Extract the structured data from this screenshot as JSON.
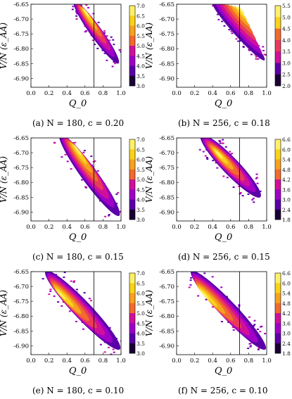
{
  "axis_labels": {
    "ylabel": "V/N  (ε_AA)",
    "xlabel": "Q_0"
  },
  "palette": [
    "#1a0033",
    "#5b00a8",
    "#a100c8",
    "#d1109a",
    "#e83a5a",
    "#f26a2e",
    "#f7a21f",
    "#f9d21a",
    "#fff06a"
  ],
  "marker_line_x": 0.7,
  "chart_data": [
    {
      "type": "heatmap",
      "caption": "(a) N = 180, c = 0.20",
      "xlim": [
        0.0,
        1.0
      ],
      "ylim": [
        -6.93,
        -6.65
      ],
      "xticks": [
        "0.0",
        "0.2",
        "0.4",
        "0.6",
        "0.8",
        "1.0"
      ],
      "yticks": [
        "-6.65",
        "-6.70",
        "-6.75",
        "-6.80",
        "-6.85",
        "-6.90"
      ],
      "colorbar": [
        "7.0",
        "6.5",
        "6.0",
        "5.5",
        "5.0",
        "4.5",
        "4.0",
        "3.5",
        "3.0"
      ],
      "colorbar_range": [
        3.0,
        7.0
      ],
      "ridge": [
        [
          0.5,
          -6.65
        ],
        [
          0.95,
          -6.84
        ]
      ],
      "peak": [
        0.6,
        -6.67
      ],
      "width": 0.12
    },
    {
      "type": "heatmap",
      "caption": "(b) N = 256, c = 0.18",
      "xlim": [
        0.0,
        1.0
      ],
      "ylim": [
        -6.93,
        -6.65
      ],
      "xticks": [
        "0.0",
        "0.2",
        "0.4",
        "0.6",
        "0.8",
        "1.0"
      ],
      "yticks": [
        "-6.65",
        "-6.70",
        "-6.75",
        "-6.80",
        "-6.85",
        "-6.90"
      ],
      "colorbar": [
        "5.5",
        "5.0",
        "4.5",
        "4.0",
        "3.5",
        "3.0",
        "2.5",
        "2.0"
      ],
      "colorbar_range": [
        2.0,
        5.5
      ],
      "ridge": [
        [
          0.42,
          -6.65
        ],
        [
          0.95,
          -6.83
        ]
      ],
      "peak": [
        0.72,
        -6.66
      ],
      "width": 0.1
    },
    {
      "type": "heatmap",
      "caption": "(c) N = 180, c = 0.15",
      "xlim": [
        0.0,
        1.0
      ],
      "ylim": [
        -6.93,
        -6.65
      ],
      "xticks": [
        "0.0",
        "0.2",
        "0.4",
        "0.6",
        "0.8",
        "1.0"
      ],
      "yticks": [
        "-6.65",
        "-6.70",
        "-6.75",
        "-6.80",
        "-6.85",
        "-6.90"
      ],
      "colorbar": [
        "7.0",
        "6.5",
        "6.0",
        "5.5",
        "5.0",
        "4.5",
        "4.0",
        "3.5",
        "3.0"
      ],
      "colorbar_range": [
        3.0,
        7.0
      ],
      "ridge": [
        [
          0.35,
          -6.65
        ],
        [
          0.95,
          -6.9
        ]
      ],
      "peak": [
        0.5,
        -6.68
      ],
      "width": 0.16
    },
    {
      "type": "heatmap",
      "caption": "(d) N = 256, c = 0.15",
      "xlim": [
        0.0,
        1.0
      ],
      "ylim": [
        -6.93,
        -6.65
      ],
      "xticks": [
        "0.0",
        "0.2",
        "0.4",
        "0.6",
        "0.8",
        "1.0"
      ],
      "yticks": [
        "-6.65",
        "-6.70",
        "-6.75",
        "-6.80",
        "-6.85",
        "-6.90"
      ],
      "colorbar": [
        "6.6",
        "6.0",
        "5.4",
        "4.8",
        "4.2",
        "3.6",
        "3.0",
        "2.4",
        "1.8"
      ],
      "colorbar_range": [
        1.8,
        6.6
      ],
      "ridge": [
        [
          0.3,
          -6.65
        ],
        [
          0.9,
          -6.84
        ]
      ],
      "peak": [
        0.45,
        -6.7
      ],
      "width": 0.17
    },
    {
      "type": "heatmap",
      "caption": "(e) N = 180, c = 0.10",
      "xlim": [
        0.0,
        1.0
      ],
      "ylim": [
        -6.93,
        -6.65
      ],
      "xticks": [
        "0.0",
        "0.2",
        "0.4",
        "0.6",
        "0.8",
        "1.0"
      ],
      "yticks": [
        "-6.65",
        "-6.70",
        "-6.75",
        "-6.80",
        "-6.85",
        "-6.90"
      ],
      "colorbar": [
        "7.0",
        "6.5",
        "6.0",
        "5.5",
        "5.0",
        "4.5",
        "4.0",
        "3.5",
        "3.0"
      ],
      "colorbar_range": [
        3.0,
        7.0
      ],
      "ridge": [
        [
          0.2,
          -6.66
        ],
        [
          0.95,
          -6.9
        ]
      ],
      "peak": [
        0.3,
        -6.72
      ],
      "width": 0.18
    },
    {
      "type": "heatmap",
      "caption": "(f) N = 256, c = 0.10",
      "xlim": [
        0.0,
        1.0
      ],
      "ylim": [
        -6.93,
        -6.65
      ],
      "xticks": [
        "0.0",
        "0.2",
        "0.4",
        "0.6",
        "0.8",
        "1.0"
      ],
      "yticks": [
        "-6.65",
        "-6.70",
        "-6.75",
        "-6.80",
        "-6.85",
        "-6.90"
      ],
      "colorbar": [
        "6.6",
        "6.0",
        "5.4",
        "4.8",
        "4.2",
        "3.6",
        "3.0",
        "2.4",
        "1.8"
      ],
      "colorbar_range": [
        1.8,
        6.6
      ],
      "ridge": [
        [
          0.2,
          -6.66
        ],
        [
          0.95,
          -6.9
        ]
      ],
      "peak": [
        0.27,
        -6.72
      ],
      "width": 0.17
    }
  ]
}
